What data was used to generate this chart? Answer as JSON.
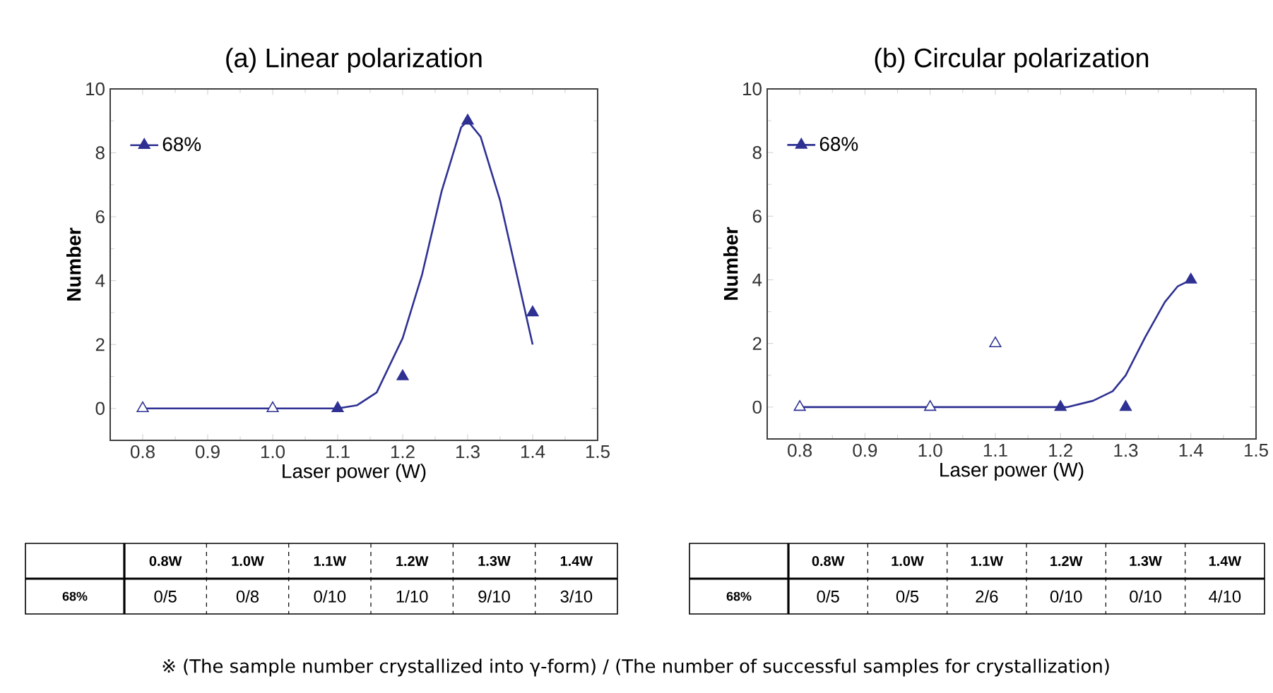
{
  "chart_data": [
    {
      "type": "scatter",
      "title": "(a) Linear polarization",
      "xlabel": "Laser power (W)",
      "ylabel": "Number",
      "xlim": [
        0.75,
        1.5
      ],
      "ylim": [
        -1,
        10
      ],
      "xticks": [
        0.8,
        0.9,
        {
          "value": 1.0,
          "label": "1.0"
        },
        1.1,
        1.2,
        1.3,
        1.4,
        1.5
      ],
      "yticks": [
        0,
        2,
        4,
        6,
        8,
        10
      ],
      "legend": "top left",
      "annotations": [
        "0.8W",
        "1.0W",
        "1.1W",
        "1.2W",
        "1.3W",
        "1.4W",
        "0/5",
        "0/8",
        "0/10",
        "1/10",
        "9/10",
        "3/10",
        "※ (The sample number crystallized into γ-form) / (The number of successful samples for crystallization)"
      ],
      "series": [
        {
          "name": "68%",
          "color": "#2e3192",
          "marker": "triangle",
          "x": [
            1.1,
            1.2,
            1.3,
            1.4
          ],
          "values": [
            0,
            1,
            9,
            3
          ]
        },
        {
          "color": "#2e3192",
          "marker": "triangle",
          "x": [
            0.8,
            1.0
          ],
          "values": [
            0,
            0
          ]
        },
        {
          "type": "line",
          "color": "#2e3192",
          "x": [
            0.8,
            1.1,
            1.13,
            1.16,
            1.2,
            1.23,
            1.26,
            1.29,
            1.3,
            1.32,
            1.35,
            1.38,
            1.4
          ],
          "values": [
            0,
            0,
            0.1,
            0.5,
            2.2,
            4.2,
            6.8,
            8.8,
            9.0,
            8.5,
            6.5,
            3.8,
            2.0
          ]
        }
      ]
    },
    {
      "type": "scatter",
      "title": "(b) Circular polarization",
      "xlabel": "Laser power (W)",
      "ylabel": "Number",
      "xlim": [
        0.75,
        1.5
      ],
      "ylim": [
        -1,
        10
      ],
      "xticks": [
        0.8,
        0.9,
        {
          "value": 1.0,
          "label": "1.0"
        },
        1.1,
        1.2,
        1.3,
        1.4,
        1.5
      ],
      "yticks": [
        0,
        2,
        4,
        6,
        8,
        10
      ],
      "legend": "top left",
      "annotations": [
        "0.8W",
        "1.0W",
        "1.1W",
        "1.2W",
        "1.3W",
        "1.4W",
        "0/5",
        "0/5",
        "2/6",
        "0/10",
        "0/10",
        "4/10"
      ],
      "series": [
        {
          "name": "68%",
          "color": "#2e3192",
          "marker": "triangle",
          "x": [
            1.2,
            1.3,
            1.4
          ],
          "values": [
            0,
            0,
            4
          ]
        },
        {
          "color": "#2e3192",
          "marker": "triangle",
          "x": [
            0.8,
            1.0,
            1.1
          ],
          "values": [
            0,
            0,
            2
          ]
        },
        {
          "type": "line",
          "color": "#2e3192",
          "x": [
            0.8,
            1.21,
            1.25,
            1.28,
            1.3,
            1.33,
            1.36,
            1.38,
            1.4
          ],
          "values": [
            0,
            0,
            0.2,
            0.5,
            1.0,
            2.2,
            3.3,
            3.8,
            4.0
          ]
        }
      ]
    }
  ]
}
